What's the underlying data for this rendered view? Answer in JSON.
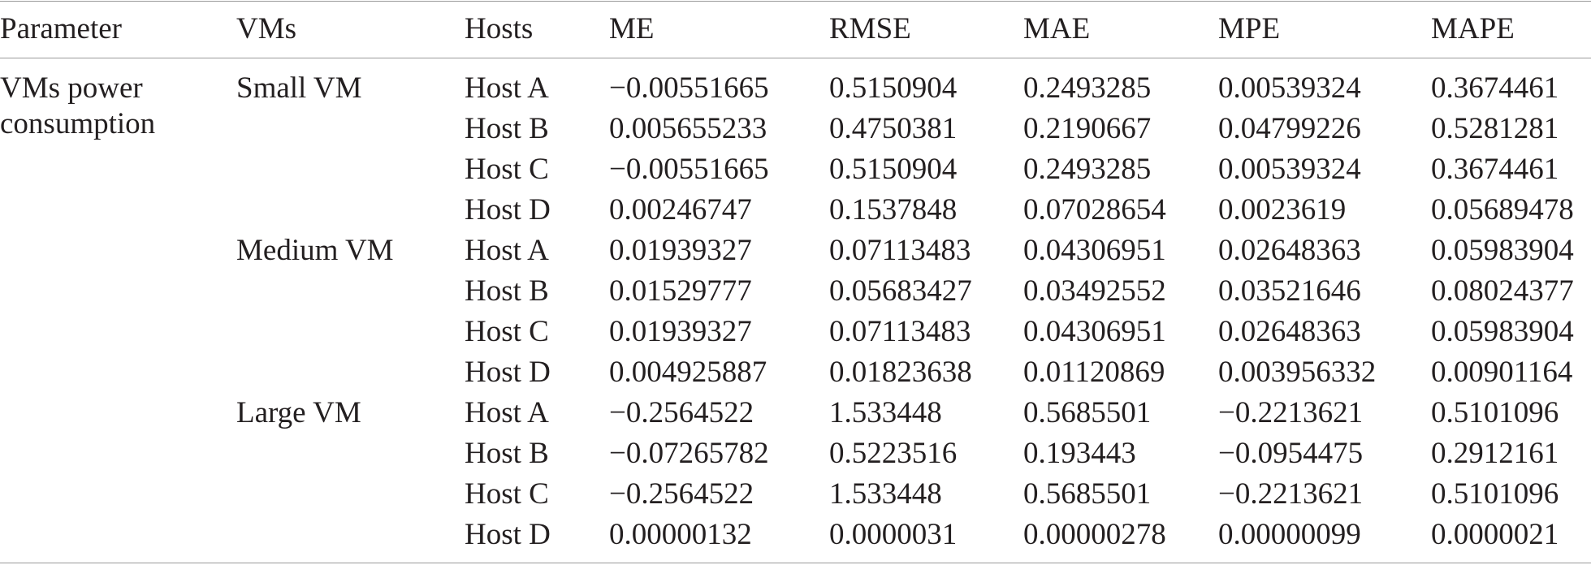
{
  "table": {
    "columns": [
      "Parameter",
      "VMs",
      "Hosts",
      "ME",
      "RMSE",
      "MAE",
      "MPE",
      "MAPE"
    ],
    "parameter": "VMs power consumption",
    "groups": [
      {
        "vm": "Small VM",
        "rows": [
          {
            "host": "Host A",
            "values": [
              "−0.00551665",
              "0.5150904",
              "0.2493285",
              "0.00539324",
              "0.3674461"
            ]
          },
          {
            "host": "Host B",
            "values": [
              "0.005655233",
              "0.4750381",
              "0.2190667",
              "0.04799226",
              "0.5281281"
            ]
          },
          {
            "host": "Host C",
            "values": [
              "−0.00551665",
              "0.5150904",
              "0.2493285",
              "0.00539324",
              "0.3674461"
            ]
          },
          {
            "host": "Host D",
            "values": [
              "0.00246747",
              "0.1537848",
              "0.07028654",
              "0.0023619",
              "0.05689478"
            ]
          }
        ]
      },
      {
        "vm": "Medium VM",
        "rows": [
          {
            "host": "Host A",
            "values": [
              "0.01939327",
              "0.07113483",
              "0.04306951",
              "0.02648363",
              "0.05983904"
            ]
          },
          {
            "host": "Host B",
            "values": [
              "0.01529777",
              "0.05683427",
              "0.03492552",
              "0.03521646",
              "0.08024377"
            ]
          },
          {
            "host": "Host C",
            "values": [
              "0.01939327",
              "0.07113483",
              "0.04306951",
              "0.02648363",
              "0.05983904"
            ]
          },
          {
            "host": "Host D",
            "values": [
              "0.004925887",
              "0.01823638",
              "0.01120869",
              "0.003956332",
              "0.00901164"
            ]
          }
        ]
      },
      {
        "vm": "Large VM",
        "rows": [
          {
            "host": "Host A",
            "values": [
              "−0.2564522",
              "1.533448",
              "0.5685501",
              "−0.2213621",
              "0.5101096"
            ]
          },
          {
            "host": "Host B",
            "values": [
              "−0.07265782",
              "0.5223516",
              "0.193443",
              "−0.0954475",
              "0.2912161"
            ]
          },
          {
            "host": "Host C",
            "values": [
              "−0.2564522",
              "1.533448",
              "0.5685501",
              "−0.2213621",
              "0.5101096"
            ]
          },
          {
            "host": "Host D",
            "values": [
              "0.00000132",
              "0.0000031",
              "0.00000278",
              "0.00000099",
              "0.0000021"
            ]
          }
        ]
      }
    ]
  }
}
